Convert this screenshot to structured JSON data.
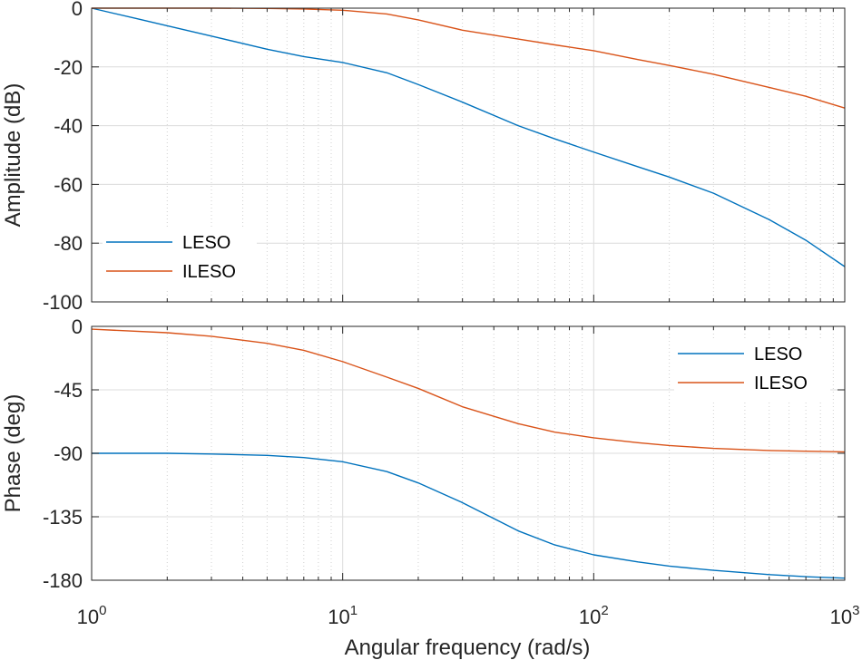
{
  "chart_data": [
    {
      "type": "line",
      "id": "magnitude",
      "title": "",
      "xlabel": "",
      "ylabel": "Amplitude (dB)",
      "xscale": "log",
      "xlim": [
        1,
        1000
      ],
      "ylim": [
        -100,
        0
      ],
      "yticks": [
        0,
        -20,
        -40,
        -60,
        -80,
        -100
      ],
      "yticklabels": [
        "0",
        "-20",
        "-40",
        "-60",
        "-80",
        "-100"
      ],
      "grid": true,
      "legend_position": "bottom-left",
      "series": [
        {
          "name": "LESO",
          "color": "#0072BD",
          "x": [
            1,
            1.5,
            2,
            3,
            5,
            7,
            10,
            15,
            20,
            30,
            50,
            70,
            100,
            150,
            200,
            300,
            500,
            700,
            1000
          ],
          "y": [
            0,
            -3.5,
            -6,
            -9.5,
            -14,
            -16.5,
            -18.5,
            -22,
            -26,
            -32,
            -40,
            -44.5,
            -49,
            -54,
            -57.5,
            -63,
            -72,
            -79,
            -88
          ]
        },
        {
          "name": "ILESO",
          "color": "#D95319",
          "x": [
            1,
            2,
            3,
            5,
            7,
            10,
            15,
            20,
            30,
            50,
            70,
            100,
            150,
            200,
            300,
            500,
            700,
            1000
          ],
          "y": [
            0,
            0,
            0,
            -0.1,
            -0.3,
            -0.7,
            -2,
            -4,
            -7.5,
            -10.5,
            -12.5,
            -14.5,
            -17.5,
            -19.5,
            -22.5,
            -27,
            -30,
            -34
          ]
        }
      ]
    },
    {
      "type": "line",
      "id": "phase",
      "title": "",
      "xlabel": "Angular frequency  (rad/s)",
      "ylabel": "Phase (deg)",
      "xscale": "log",
      "xlim": [
        1,
        1000
      ],
      "ylim": [
        -180,
        0
      ],
      "yticks": [
        0,
        -45,
        -90,
        -135,
        -180
      ],
      "yticklabels": [
        "0",
        "-45",
        "-90",
        "-135",
        "-180"
      ],
      "xticks": [
        1,
        10,
        100,
        1000
      ],
      "xtick_base": [
        "10",
        "10",
        "10",
        "10"
      ],
      "xtick_exp": [
        "0",
        "1",
        "2",
        "3"
      ],
      "grid": true,
      "legend_position": "top-right",
      "series": [
        {
          "name": "LESO",
          "color": "#0072BD",
          "x": [
            1,
            2,
            3,
            5,
            7,
            10,
            15,
            20,
            30,
            50,
            70,
            100,
            150,
            200,
            300,
            500,
            700,
            1000
          ],
          "y": [
            -90,
            -90,
            -90.5,
            -91.5,
            -93,
            -96,
            -103,
            -111,
            -125,
            -145,
            -155,
            -162,
            -167,
            -170,
            -173,
            -176,
            -177.5,
            -178.5
          ]
        },
        {
          "name": "ILESO",
          "color": "#D95319",
          "x": [
            1,
            2,
            3,
            5,
            7,
            10,
            15,
            20,
            30,
            50,
            70,
            100,
            150,
            200,
            300,
            500,
            700,
            1000
          ],
          "y": [
            -2,
            -4.5,
            -7,
            -12,
            -17,
            -25,
            -36,
            -44,
            -57,
            -69,
            -75,
            -79,
            -82.5,
            -84.5,
            -86.5,
            -88,
            -88.5,
            -89
          ]
        }
      ]
    }
  ]
}
